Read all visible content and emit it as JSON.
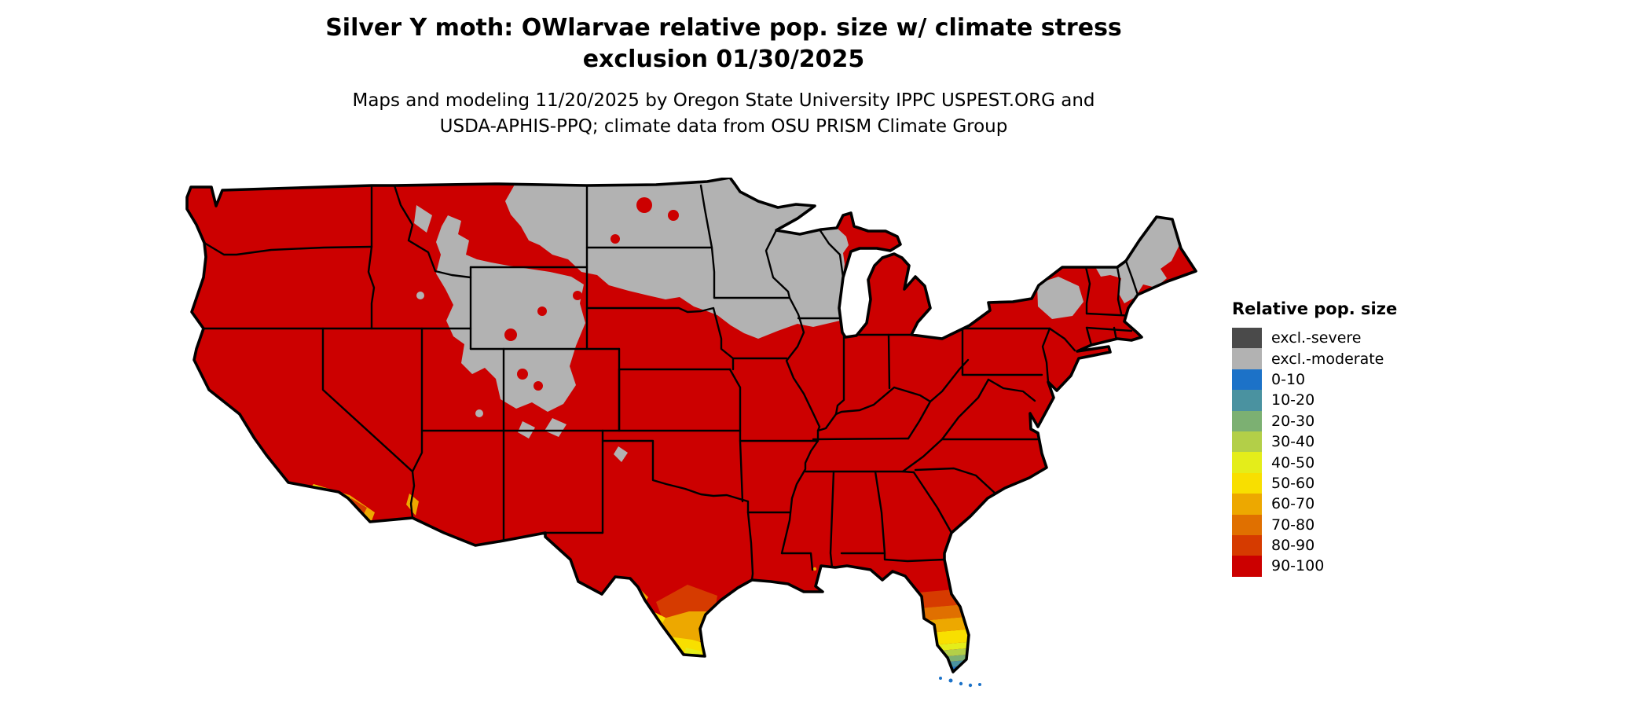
{
  "title": {
    "line1": "Silver Y moth: OWlarvae relative pop. size w/ climate stress",
    "line2": "exclusion 01/30/2025"
  },
  "subtitle": {
    "line1": "Maps and modeling 11/20/2025 by Oregon State University IPPC USPEST.ORG and",
    "line2": "USDA-APHIS-PPQ; climate data from OSU PRISM Climate Group"
  },
  "legend": {
    "title": "Relative pop. size",
    "items": [
      {
        "key": "sev",
        "label": "excl.-severe",
        "color": "#4a4a4a"
      },
      {
        "key": "mod",
        "label": "excl.-moderate",
        "color": "#b2b2b2"
      },
      {
        "key": "b0",
        "label": "0-10",
        "color": "#1c72c8"
      },
      {
        "key": "b10",
        "label": "10-20",
        "color": "#4a92a0"
      },
      {
        "key": "b20",
        "label": "20-30",
        "color": "#7cb072"
      },
      {
        "key": "b30",
        "label": "30-40",
        "color": "#b3cf48"
      },
      {
        "key": "b40",
        "label": "40-50",
        "color": "#e4ed1a"
      },
      {
        "key": "b50",
        "label": "50-60",
        "color": "#f8df00"
      },
      {
        "key": "b60",
        "label": "60-70",
        "color": "#eda800"
      },
      {
        "key": "b70",
        "label": "70-80",
        "color": "#e07000"
      },
      {
        "key": "b80",
        "label": "80-90",
        "color": "#d63b00"
      },
      {
        "key": "b90",
        "label": "90-100",
        "color": "#cc0000"
      }
    ]
  },
  "map": {
    "background": "#ffffff",
    "border_color": "#000000",
    "base_category": "90-100",
    "excluded_category": "excl.-moderate"
  }
}
